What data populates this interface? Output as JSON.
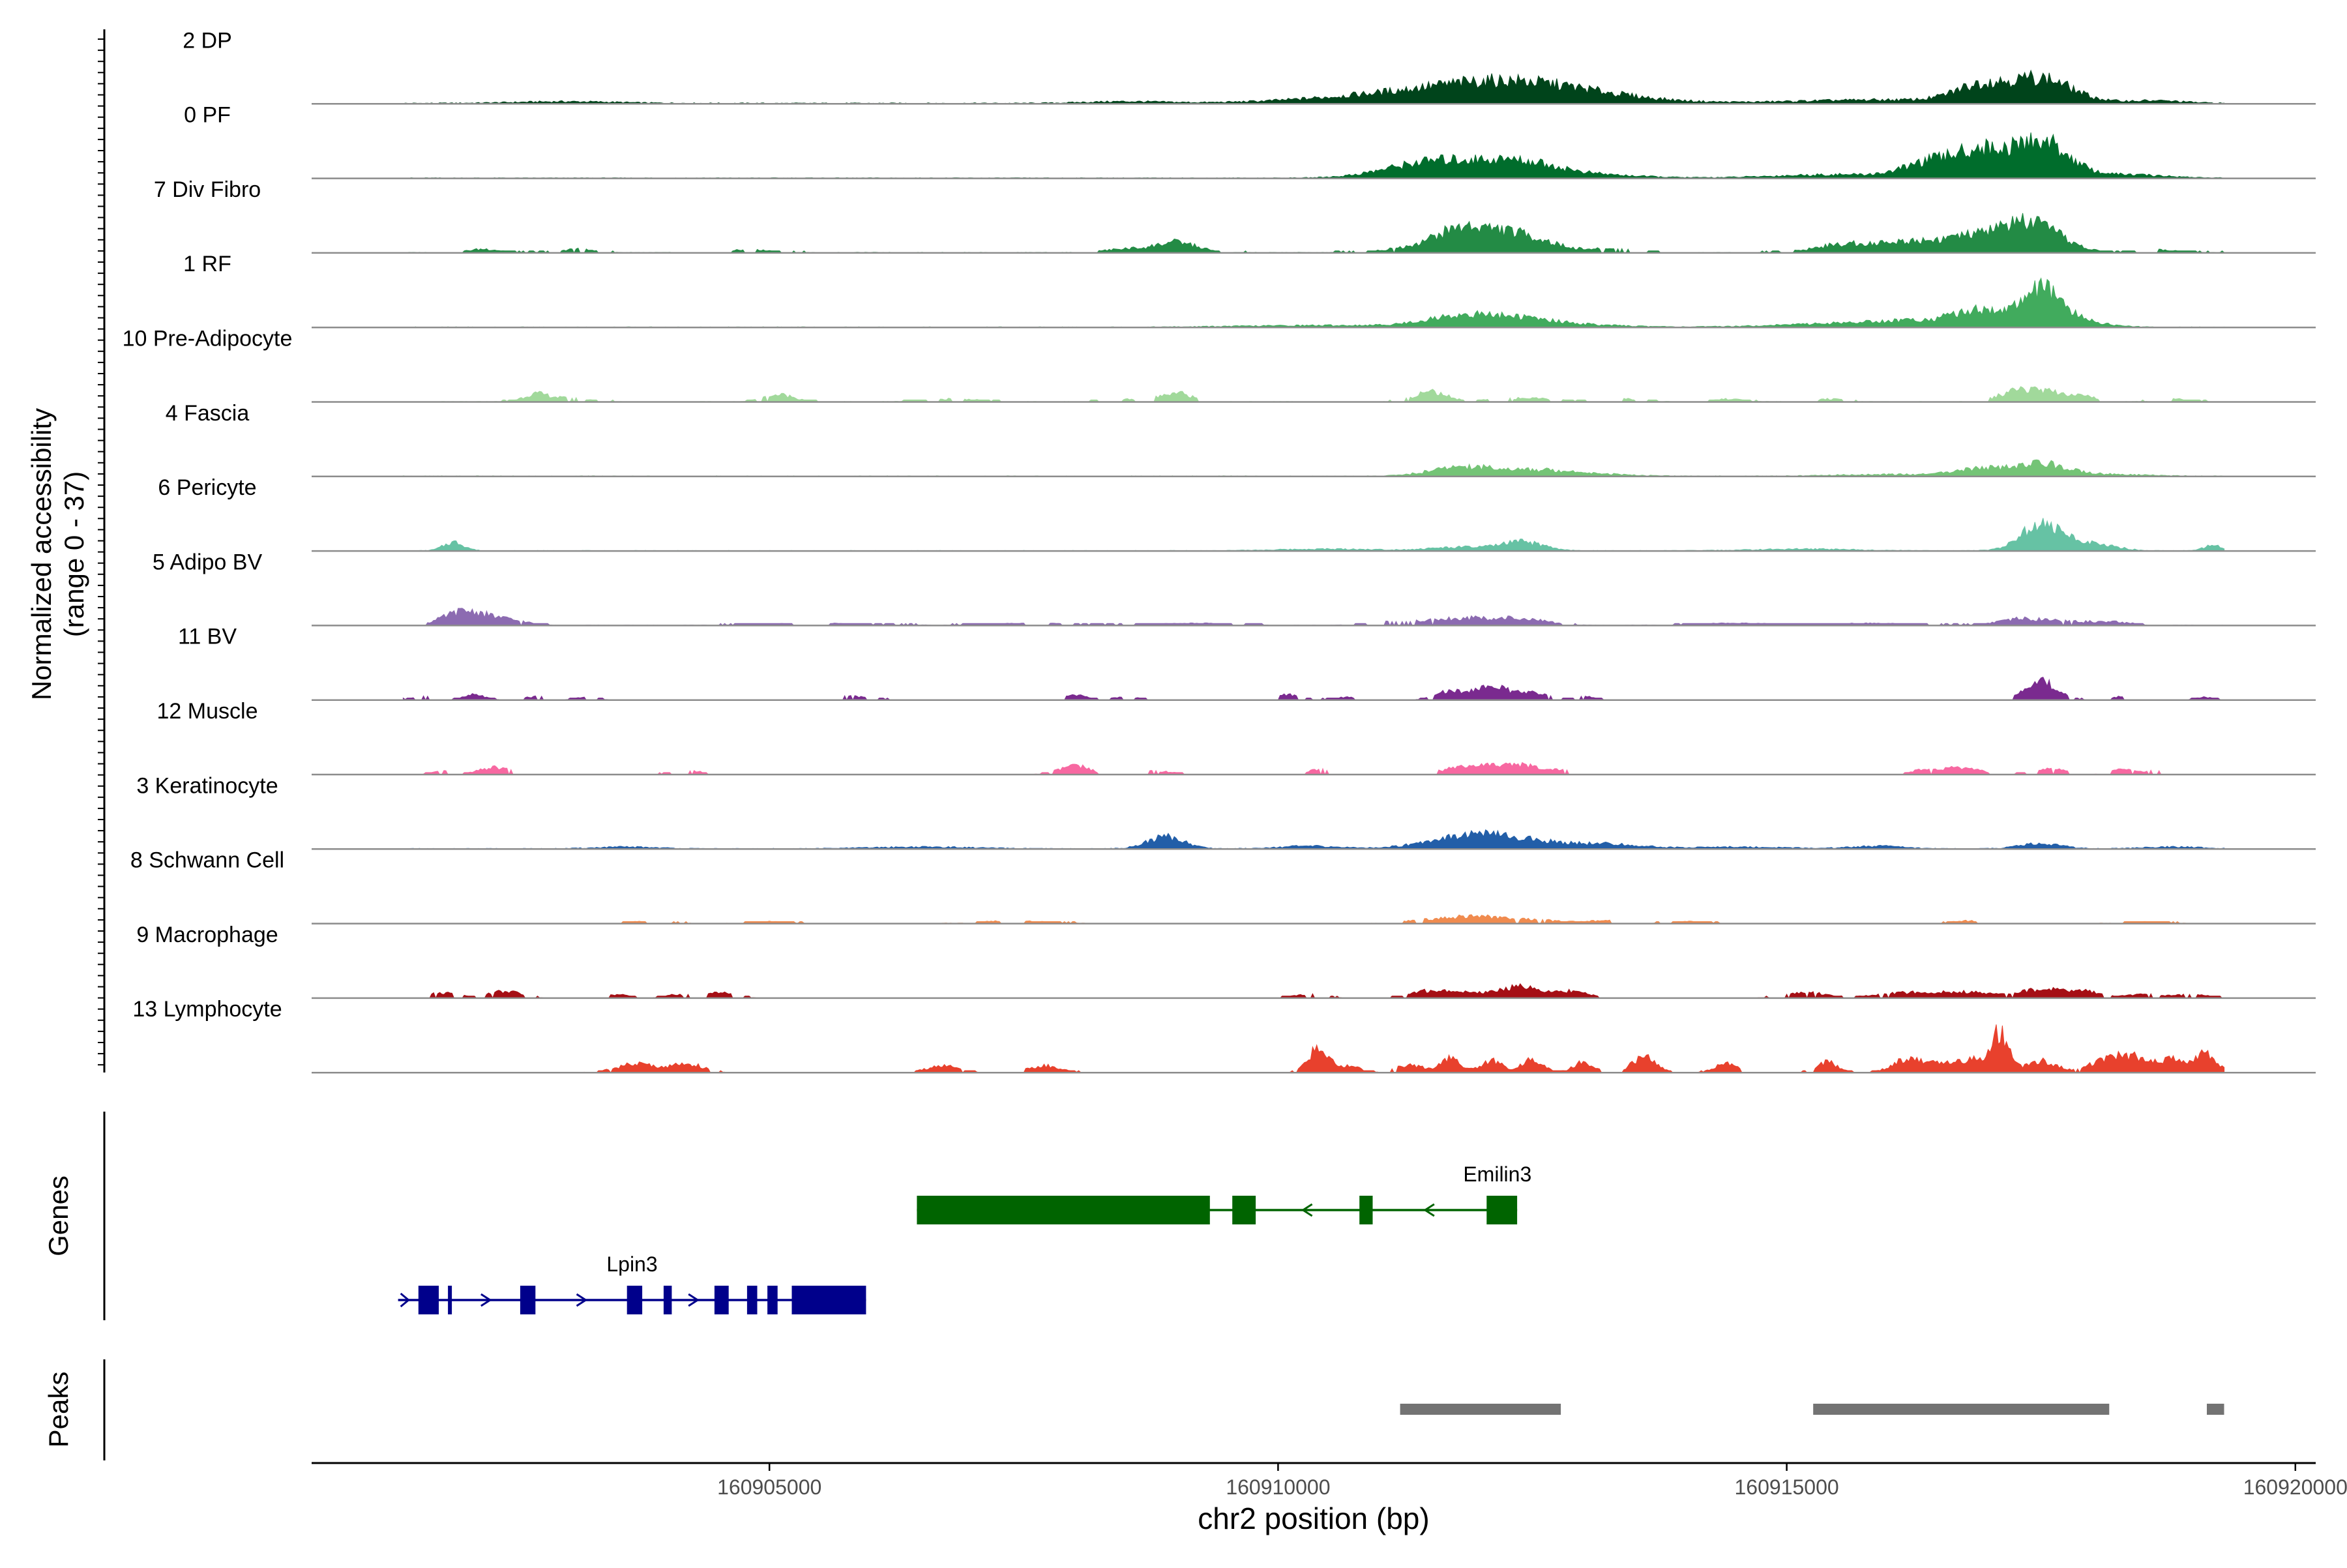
{
  "chart_data": {
    "type": "area",
    "title": "",
    "chromosome": "chr2",
    "xlabel": "chr2 position (bp)",
    "xlim": [
      160900500,
      160920200
    ],
    "xticks": [
      160905000,
      160910000,
      160915000,
      160920000
    ],
    "xtick_labels": [
      "160905000",
      "160910000",
      "160915000",
      "160920000"
    ],
    "ylabel_line1": "Normalized accessibility",
    "ylabel_line2": "(range 0 - 37)",
    "yrange": [
      0,
      37
    ],
    "track_start": 160901400,
    "track_end": 160919300,
    "tracks": [
      {
        "name": "2 DP",
        "color": "#00441b",
        "peaks": [
          [
            160912300,
            10,
            700
          ],
          [
            160911300,
            5,
            900
          ],
          [
            160913200,
            2,
            600
          ],
          [
            160916000,
            2,
            900
          ],
          [
            160916900,
            9,
            250
          ],
          [
            160917500,
            14,
            300
          ],
          [
            160918600,
            1.5,
            300
          ],
          [
            160903000,
            1,
            500
          ],
          [
            160908500,
            1,
            400
          ]
        ],
        "noise": 0.6,
        "gap": 0.0
      },
      {
        "name": "0 PF",
        "color": "#006d2c",
        "peaks": [
          [
            160911700,
            8,
            450
          ],
          [
            160912400,
            7,
            350
          ],
          [
            160911300,
            3,
            400
          ],
          [
            160913000,
            2,
            500
          ],
          [
            160915500,
            2,
            600
          ],
          [
            160916400,
            8,
            250
          ],
          [
            160916900,
            15,
            250
          ],
          [
            160917500,
            21,
            260
          ],
          [
            160918300,
            2,
            400
          ]
        ],
        "noise": 0.4,
        "gap": 0.0
      },
      {
        "name": "7 Div Fibro",
        "color": "#238b45",
        "peaks": [
          [
            160911800,
            10,
            250
          ],
          [
            160912300,
            11,
            350
          ],
          [
            160911400,
            3,
            300
          ],
          [
            160909000,
            6,
            200
          ],
          [
            160908500,
            2,
            200
          ],
          [
            160915600,
            5,
            300
          ],
          [
            160916200,
            5,
            250
          ],
          [
            160916800,
            9,
            300
          ],
          [
            160917500,
            13,
            250
          ],
          [
            160917200,
            7,
            200
          ],
          [
            160902200,
            2,
            150
          ],
          [
            160903100,
            2,
            150
          ],
          [
            160904800,
            1.5,
            200
          ],
          [
            160913300,
            2,
            200
          ],
          [
            160918700,
            1.5,
            200
          ]
        ],
        "noise": 0.4,
        "gap": 0.45
      },
      {
        "name": "1 RF",
        "color": "#41ab5d",
        "peaks": [
          [
            160911800,
            6,
            350
          ],
          [
            160912400,
            4,
            350
          ],
          [
            160913000,
            1,
            500
          ],
          [
            160915500,
            2,
            600
          ],
          [
            160916300,
            3,
            400
          ],
          [
            160916900,
            9,
            250
          ],
          [
            160917500,
            21,
            200
          ],
          [
            160917900,
            3,
            250
          ],
          [
            160910500,
            1,
            800
          ]
        ],
        "noise": 0.35,
        "gap": 0.0
      },
      {
        "name": "10 Pre-Adipocyte",
        "color": "#a1d99b",
        "peaks": [
          [
            160902700,
            4,
            120
          ],
          [
            160905100,
            4,
            150
          ],
          [
            160909000,
            5,
            150
          ],
          [
            160911500,
            6,
            150
          ],
          [
            160912400,
            2,
            300
          ],
          [
            160917500,
            6,
            200
          ],
          [
            160917200,
            4,
            150
          ],
          [
            160917900,
            3,
            150
          ],
          [
            160903000,
            2,
            200
          ],
          [
            160906800,
            1.5,
            250
          ],
          [
            160908500,
            1.5,
            200
          ],
          [
            160913400,
            1.5,
            200
          ],
          [
            160914400,
            1.5,
            150
          ],
          [
            160915400,
            1.5,
            150
          ],
          [
            160918800,
            1.5,
            150
          ]
        ],
        "noise": 0.3,
        "gap": 0.5
      },
      {
        "name": "4 Fascia",
        "color": "#74c476",
        "peaks": [
          [
            160911800,
            5,
            300
          ],
          [
            160912500,
            3,
            400
          ],
          [
            160913000,
            1,
            400
          ],
          [
            160916000,
            1,
            500
          ],
          [
            160916900,
            4,
            250
          ],
          [
            160917500,
            7,
            250
          ],
          [
            160918100,
            1,
            400
          ]
        ],
        "noise": 0.4,
        "gap": 0.0
      },
      {
        "name": "6 Pericyte",
        "color": "#66c2a4",
        "peaks": [
          [
            160901900,
            5,
            100
          ],
          [
            160912400,
            5,
            200
          ],
          [
            160911800,
            2,
            300
          ],
          [
            160917500,
            15,
            200
          ],
          [
            160917900,
            4,
            150
          ],
          [
            160918200,
            2,
            150
          ],
          [
            160919200,
            3,
            100
          ],
          [
            160910500,
            1,
            500
          ],
          [
            160915200,
            1,
            500
          ]
        ],
        "noise": 0.3,
        "gap": 0.0
      },
      {
        "name": "5 Adipo BV",
        "color": "#8c6bb1",
        "peaks": [
          [
            160902000,
            8,
            200
          ],
          [
            160902400,
            3,
            200
          ],
          [
            160911800,
            4,
            350
          ],
          [
            160912400,
            3,
            250
          ],
          [
            160911100,
            1.5,
            200
          ],
          [
            160917300,
            3,
            200
          ],
          [
            160917700,
            2,
            300
          ],
          [
            160918200,
            1.5,
            200
          ],
          [
            160905400,
            1,
            500
          ],
          [
            160907600,
            1,
            400
          ],
          [
            160909200,
            1,
            400
          ],
          [
            160914500,
            1,
            400
          ],
          [
            160915800,
            1,
            500
          ]
        ],
        "noise": 0.3,
        "gap": 0.25
      },
      {
        "name": "11 BV",
        "color": "#7a2a8f",
        "peaks": [
          [
            160911700,
            5,
            150
          ],
          [
            160912100,
            8,
            150
          ],
          [
            160912500,
            4,
            150
          ],
          [
            160917500,
            11,
            150
          ],
          [
            160902100,
            3,
            100
          ],
          [
            160902700,
            2,
            100
          ],
          [
            160901600,
            2,
            100
          ],
          [
            160903200,
            1.5,
            100
          ],
          [
            160908000,
            3,
            100
          ],
          [
            160910100,
            3,
            100
          ],
          [
            160905800,
            2,
            200
          ],
          [
            160908500,
            1.5,
            150
          ],
          [
            160910700,
            1.5,
            150
          ],
          [
            160913000,
            2,
            100
          ],
          [
            160914800,
            1.5,
            100
          ],
          [
            160918300,
            2,
            100
          ],
          [
            160919100,
            1.5,
            80
          ]
        ],
        "noise": 0.1,
        "gap": 0.65
      },
      {
        "name": "12 Muscle",
        "color": "#f768a1",
        "peaks": [
          [
            160902300,
            4,
            150
          ],
          [
            160908000,
            5,
            150
          ],
          [
            160911900,
            5,
            250
          ],
          [
            160912400,
            5,
            200
          ],
          [
            160910400,
            3,
            100
          ],
          [
            160916700,
            4,
            200
          ],
          [
            160917600,
            3,
            150
          ],
          [
            160918300,
            3,
            100
          ],
          [
            160904200,
            2,
            150
          ],
          [
            160908800,
            2,
            150
          ],
          [
            160912800,
            2,
            100
          ],
          [
            160916300,
            2,
            100
          ],
          [
            160918600,
            2,
            100
          ],
          [
            160901800,
            2,
            100
          ]
        ],
        "noise": 0.1,
        "gap": 0.7
      },
      {
        "name": "3 Keratinocyte",
        "color": "#225ea8",
        "peaks": [
          [
            160908900,
            7,
            180
          ],
          [
            160911900,
            8,
            400
          ],
          [
            160912600,
            3,
            400
          ],
          [
            160913300,
            2,
            300
          ],
          [
            160910300,
            1.5,
            300
          ],
          [
            160915900,
            1.5,
            250
          ],
          [
            160917500,
            3,
            200
          ],
          [
            160903600,
            1,
            300
          ],
          [
            160906500,
            1,
            500
          ],
          [
            160914500,
            1,
            500
          ],
          [
            160918800,
            1,
            300
          ]
        ],
        "noise": 0.4,
        "gap": 0.0
      },
      {
        "name": "8 Schwann Cell",
        "color": "#f08b4f",
        "peaks": [
          [
            160911900,
            4,
            250
          ],
          [
            160912500,
            2,
            300
          ],
          [
            160911400,
            1.5,
            200
          ],
          [
            160913200,
            1.5,
            150
          ],
          [
            160907400,
            1.5,
            300
          ],
          [
            160916800,
            1.5,
            150
          ],
          [
            160903800,
            1,
            200
          ],
          [
            160905000,
            1,
            200
          ],
          [
            160914000,
            1,
            200
          ],
          [
            160918500,
            1,
            200
          ]
        ],
        "noise": 0.2,
        "gap": 0.3
      },
      {
        "name": "9 Macrophage",
        "color": "#a50f15",
        "peaks": [
          [
            160911500,
            4,
            200
          ],
          [
            160911900,
            3,
            200
          ],
          [
            160912400,
            7,
            180
          ],
          [
            160912900,
            4,
            150
          ],
          [
            160901800,
            3,
            150
          ],
          [
            160902400,
            4,
            150
          ],
          [
            160903500,
            2,
            100
          ],
          [
            160904500,
            3,
            150
          ],
          [
            160904100,
            2,
            100
          ],
          [
            160910300,
            2,
            150
          ],
          [
            160915200,
            3,
            200
          ],
          [
            160916200,
            3,
            300
          ],
          [
            160916800,
            3,
            250
          ],
          [
            160917500,
            5,
            200
          ],
          [
            160917900,
            4,
            150
          ],
          [
            160918500,
            2,
            200
          ],
          [
            160919000,
            2,
            150
          ]
        ],
        "noise": 0.1,
        "gap": 0.55
      },
      {
        "name": "13 Lymphocyte",
        "color": "#e8412d",
        "peaks": [
          [
            160903700,
            5,
            200
          ],
          [
            160904200,
            5,
            150
          ],
          [
            160906700,
            4,
            150
          ],
          [
            160907700,
            4,
            150
          ],
          [
            160910400,
            14,
            100
          ],
          [
            160910700,
            4,
            100
          ],
          [
            160911300,
            4,
            150
          ],
          [
            160911700,
            8,
            100
          ],
          [
            160912100,
            7,
            100
          ],
          [
            160912500,
            8,
            100
          ],
          [
            160913000,
            6,
            100
          ],
          [
            160913600,
            9,
            120
          ],
          [
            160914400,
            6,
            100
          ],
          [
            160915400,
            6,
            100
          ],
          [
            160916200,
            8,
            150
          ],
          [
            160916600,
            6,
            150
          ],
          [
            160917100,
            22,
            80
          ],
          [
            160916900,
            7,
            120
          ],
          [
            160917500,
            7,
            150
          ],
          [
            160918100,
            5,
            150
          ],
          [
            160918400,
            9,
            200
          ],
          [
            160918800,
            6,
            100
          ],
          [
            160919100,
            11,
            120
          ]
        ],
        "noise": 0.1,
        "gap": 0.5
      }
    ],
    "genes_label": "Genes",
    "genes": [
      {
        "name": "Emilin3",
        "strand": "-",
        "color": "#006400",
        "start": 160906450,
        "end": 160912350,
        "exons": [
          [
            160906450,
            160909330
          ],
          [
            160909550,
            160909780
          ],
          [
            160910800,
            160910930
          ],
          [
            160912050,
            160912350
          ]
        ]
      },
      {
        "name": "Lpin3",
        "strand": "+",
        "color": "#00008b",
        "start": 160901350,
        "end": 160905950,
        "exons": [
          [
            160901550,
            160901750
          ],
          [
            160901840,
            160901870
          ],
          [
            160902550,
            160902700
          ],
          [
            160903600,
            160903750
          ],
          [
            160903960,
            160904040
          ],
          [
            160904460,
            160904600
          ],
          [
            160904780,
            160904880
          ],
          [
            160904980,
            160905080
          ],
          [
            160905220,
            160905950
          ]
        ]
      }
    ],
    "peaks_label": "Peaks",
    "peak_regions": [
      [
        160911200,
        160912780
      ],
      [
        160915260,
        160918170
      ],
      [
        160919130,
        160919300
      ]
    ]
  }
}
